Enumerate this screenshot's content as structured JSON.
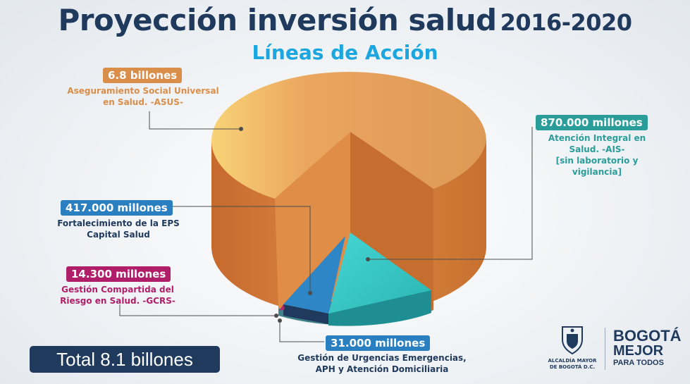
{
  "header": {
    "title_main": "Proyección inversión salud",
    "title_years": "2016-2020",
    "subtitle": "Líneas de Acción"
  },
  "chart_data": {
    "type": "pie",
    "title": "Proyección inversión salud 2016-2020",
    "subtitle": "Líneas de Acción",
    "units": "COP",
    "slices": [
      {
        "value_label": "6.8 billones",
        "value": 6800000000000,
        "label": "Aseguramiento Social Universal en Salud. -ASUS-",
        "color": "#e39b55"
      },
      {
        "value_label": "870.000 millones",
        "value": 870000000000,
        "label": "Atención Integral en Salud. -AIS- [sin laboratorio y vigilancia]",
        "color": "#3ec9c6"
      },
      {
        "value_label": "417.000 millones",
        "value": 417000000000,
        "label": "Fortalecimiento de la EPS Capital Salud",
        "color": "#2e86c8"
      },
      {
        "value_label": "14.300 millones",
        "value": 14300000000,
        "label": "Gestión Compartida del Riesgo en Salud. -GCRS-",
        "color": "#b5286e"
      },
      {
        "value_label": "31.000 millones",
        "value": 31000000000,
        "label": "Gestión de Urgencias Emergencias, APH y Atención Domiciliaria",
        "color": "#27a0a8"
      }
    ],
    "total": "Total 8.1 billones"
  },
  "labels": {
    "asus": {
      "value": "6.8 billones",
      "desc_1": "Aseguramiento Social Universal",
      "desc_2": "en Salud. -ASUS-",
      "color": "#d98e4a"
    },
    "ais": {
      "value": "870.000 millones",
      "desc_1": "Atención Integral en",
      "desc_2": "Salud. -AIS-",
      "desc_3": "[sin laboratorio y",
      "desc_4": "vigilancia]",
      "color": "#2a9d9a"
    },
    "eps": {
      "value": "417.000 millones",
      "desc_1": "Fortalecimiento de la EPS",
      "desc_2": "Capital Salud",
      "color": "#2a7fc0"
    },
    "gcrs": {
      "value": "14.300 millones",
      "desc_1": "Gestión Compartida del",
      "desc_2": "Riesgo en Salud. -GCRS-",
      "color": "#b01e6a"
    },
    "urg": {
      "value": "31.000 millones",
      "desc_1": "Gestión de Urgencias Emergencias,",
      "desc_2": "APH y Atención Domiciliaria",
      "color": "#2a7fc0"
    }
  },
  "total_label": "Total 8.1 billones",
  "logos": {
    "alcaldia_1": "ALCALDÍA MAYOR",
    "alcaldia_2": "DE BOGOTÁ D.C.",
    "bogota_1": "BOGOTÁ",
    "bogota_2": "MEJOR",
    "bogota_3": "PARA TODOS"
  }
}
